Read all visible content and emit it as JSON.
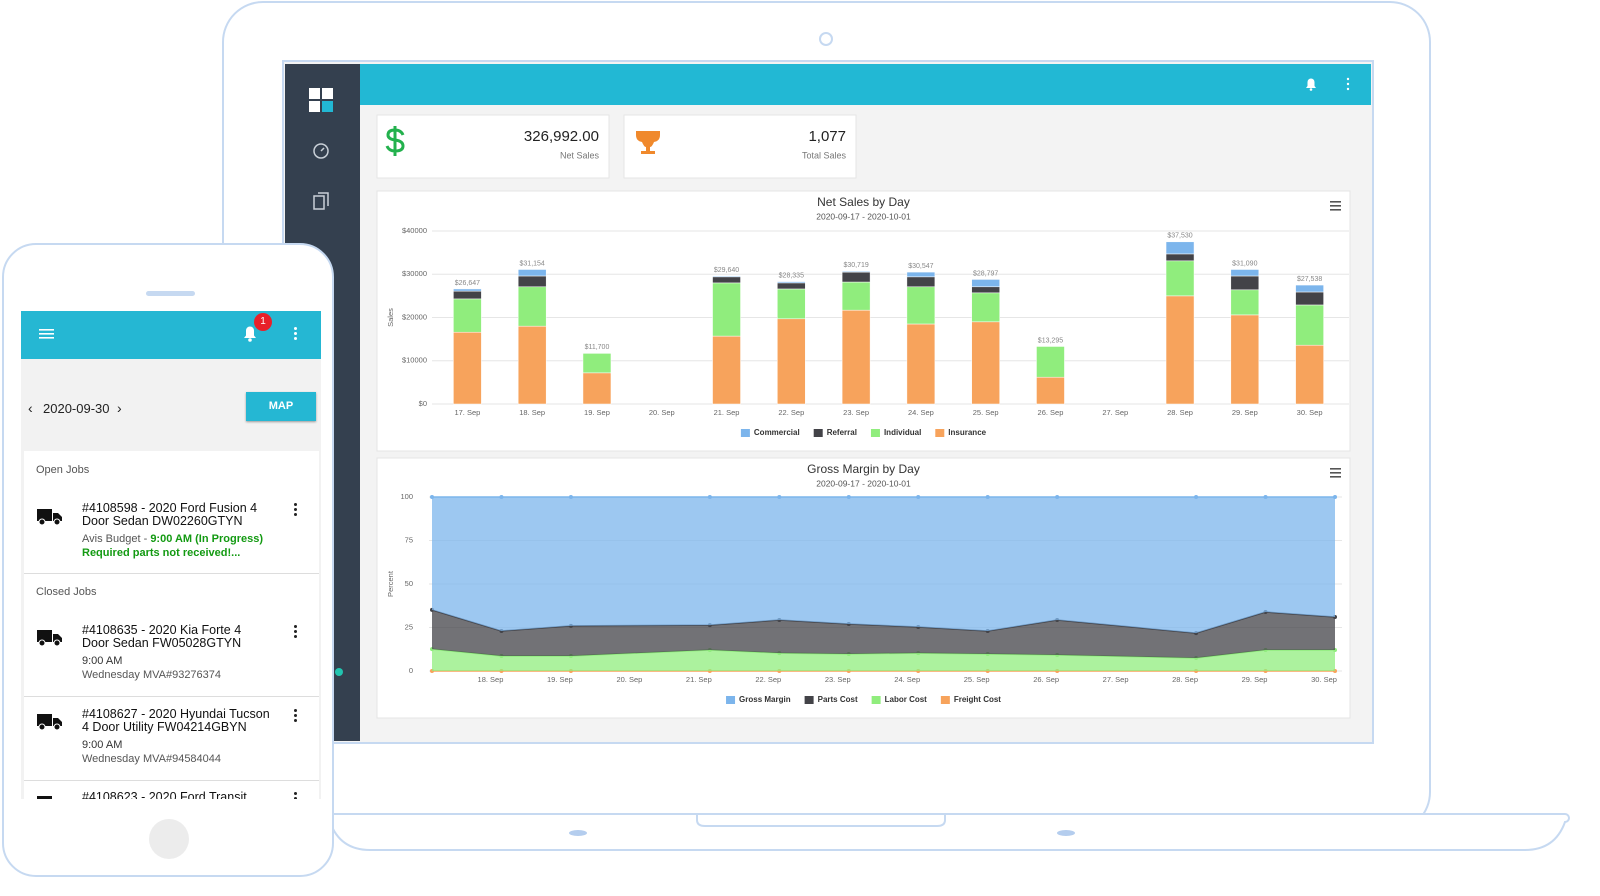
{
  "app": {
    "kpis": [
      {
        "value": "326,992.00",
        "label": "Net Sales"
      },
      {
        "value": "1,077",
        "label": "Total Sales"
      }
    ]
  },
  "chart_data": [
    {
      "type": "bar",
      "title": "Net Sales by Day",
      "subtitle": "2020-09-17 - 2020-10-01",
      "y_axis_label": "Sales",
      "categories": [
        "17. Sep",
        "18. Sep",
        "19. Sep",
        "20. Sep",
        "21. Sep",
        "22. Sep",
        "23. Sep",
        "24. Sep",
        "25. Sep",
        "26. Sep",
        "27. Sep",
        "28. Sep",
        "29. Sep",
        "30. Sep"
      ],
      "series": [
        {
          "name": "Commercial",
          "color": "#7cb5ec",
          "values": [
            500,
            1500,
            0,
            null,
            200,
            300,
            200,
            1100,
            1700,
            0,
            null,
            2800,
            1500,
            1600
          ]
        },
        {
          "name": "Referral",
          "color": "#434348",
          "values": [
            1800,
            2500,
            0,
            null,
            1400,
            1400,
            2300,
            2300,
            1400,
            0,
            null,
            1600,
            3200,
            3000
          ]
        },
        {
          "name": "Individual",
          "color": "#90ed7d",
          "values": [
            7700,
            9100,
            4500,
            null,
            12300,
            6900,
            6500,
            8600,
            6700,
            7100,
            null,
            8100,
            5800,
            9300
          ]
        },
        {
          "name": "Insurance",
          "color": "#f7a35c",
          "values": [
            16600,
            18000,
            7200,
            null,
            15700,
            19700,
            21700,
            18500,
            19000,
            6200,
            null,
            25000,
            20600,
            13600
          ]
        }
      ],
      "totals": {
        "values": [
          26647,
          31154,
          11700,
          null,
          29640,
          28335,
          30719,
          30547,
          28797,
          13295,
          null,
          37530,
          31090,
          27538
        ],
        "value_labels": [
          "$26,647",
          "$31,154",
          "$11,700",
          null,
          "$29,640",
          "$28,335",
          "$30,719",
          "$30,547",
          "$28,797",
          "$13,295",
          null,
          "$37,530",
          "$31,090",
          "$27,538"
        ]
      },
      "ylim": [
        0,
        40000
      ],
      "yticks": [
        {
          "value": 0,
          "label": "$0"
        },
        {
          "value": 10000,
          "label": "$10000"
        },
        {
          "value": 20000,
          "label": "$20000"
        },
        {
          "value": 30000,
          "label": "$30000"
        },
        {
          "value": 40000,
          "label": "$40000"
        }
      ],
      "grid": true
    },
    {
      "type": "area",
      "title": "Gross Margin by Day",
      "subtitle": "2020-09-17 - 2020-10-01",
      "y_axis_label": "Percent",
      "categories": [
        null,
        "18. Sep",
        "19. Sep",
        "20. Sep",
        "21. Sep",
        "22. Sep",
        "23. Sep",
        "24. Sep",
        "25. Sep",
        "26. Sep",
        "27. Sep",
        "28. Sep",
        "29. Sep",
        "30. Sep"
      ],
      "connect_nulls": true,
      "series": [
        {
          "name": "Gross Margin",
          "color": "#7cb5ec",
          "values": [
            64.9,
            77.0,
            74.1,
            null,
            73.6,
            70.7,
            73.0,
            74.7,
            77.0,
            70.7,
            null,
            78.2,
            66.1,
            69.0
          ]
        },
        {
          "name": "Parts Cost",
          "color": "#434348",
          "values": [
            22.5,
            14.4,
            17.3,
            null,
            14.3,
            19.0,
            17.2,
            15.0,
            13.2,
            20.1,
            null,
            14.3,
            21.8,
            18.9
          ]
        },
        {
          "name": "Labor Cost",
          "color": "#90ed7d",
          "values": [
            12.6,
            8.6,
            8.6,
            null,
            12.1,
            10.3,
            9.8,
            10.3,
            9.8,
            9.2,
            null,
            7.5,
            12.1,
            12.1
          ]
        },
        {
          "name": "Freight Cost",
          "color": "#f7a35c",
          "values": [
            0,
            0,
            0,
            null,
            0,
            0,
            0,
            0,
            0,
            0,
            null,
            0,
            0,
            0
          ]
        }
      ],
      "ylim": [
        0,
        100
      ],
      "yticks": [
        0,
        25,
        50,
        75,
        100
      ],
      "grid": true
    }
  ],
  "mobile": {
    "badge": "1",
    "date": "2020-09-30",
    "map_button": "MAP",
    "open_title": "Open Jobs",
    "open_jobs": [
      {
        "title": "#4108598 - 2020 Ford Fusion 4 Door Sedan DW02260GTYN",
        "company": "Avis Budget",
        "separator": "-",
        "status": "9:00 AM (In Progress)",
        "note": "Required parts not received!..."
      }
    ],
    "closed_title": "Closed Jobs",
    "closed_jobs": [
      {
        "title": "#4108635 - 2020 Kia Forte 4 Door Sedan FW05028GTYN",
        "time": "9:00 AM",
        "detail": "Wednesday MVA#93276374"
      },
      {
        "title": "#4108627 - 2020 Hyundai Tucson 4 Door Utility FW04214GBYN",
        "time": "9:00 AM",
        "detail": "Wednesday MVA#94584044"
      },
      {
        "title": "#4108623 - 2020 Ford Transit"
      }
    ]
  }
}
